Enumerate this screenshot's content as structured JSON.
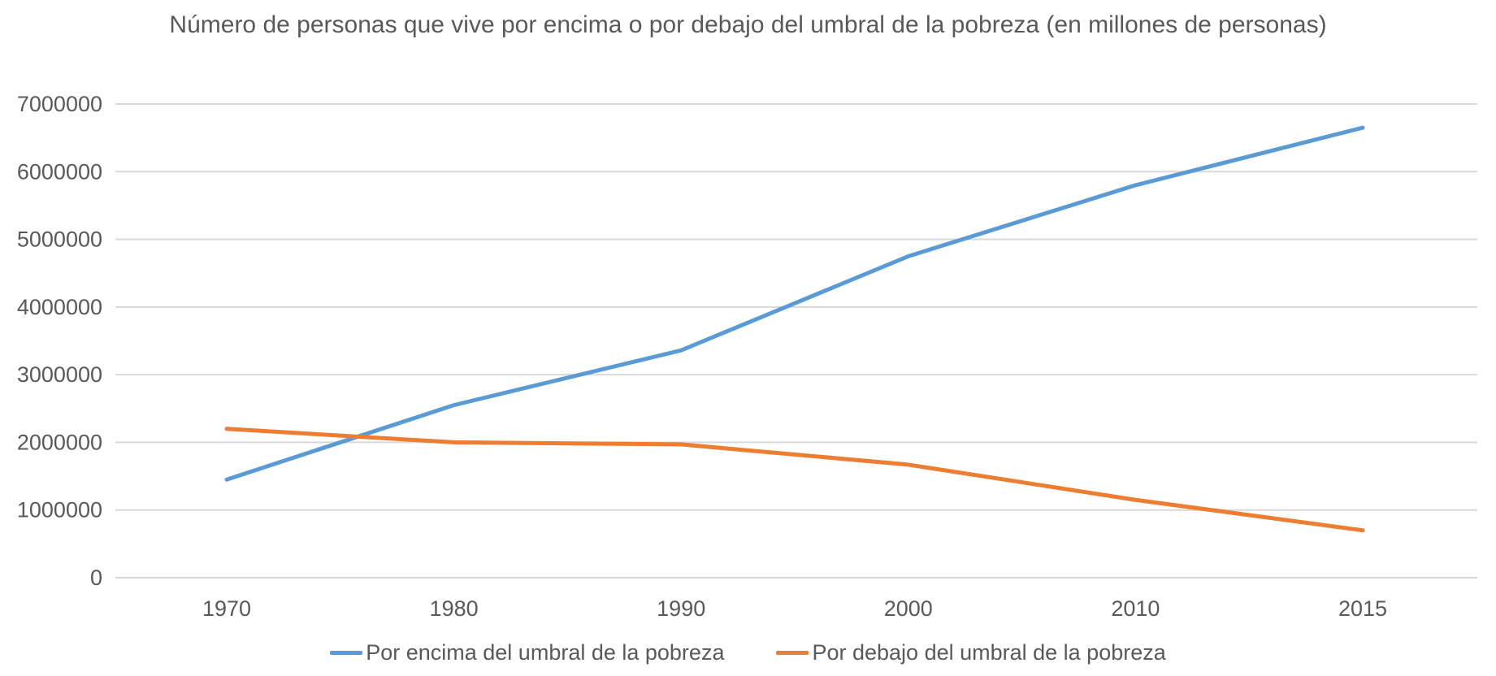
{
  "title": "Número de personas que vive por encima o por debajo del umbral de la pobreza (en millones de personas)",
  "chart_data": {
    "type": "line",
    "x": [
      "1970",
      "1980",
      "1990",
      "2000",
      "2010",
      "2015"
    ],
    "series": [
      {
        "name": "Por encima del umbral de la pobreza",
        "slug": "por-encima",
        "color": "#5B9BD5",
        "values": [
          1450000,
          2550000,
          3360000,
          4750000,
          5800000,
          6650000
        ]
      },
      {
        "name": "Por debajo del umbral de la pobreza",
        "slug": "por-debajo",
        "color": "#ED7D31",
        "values": [
          2200000,
          2000000,
          1970000,
          1670000,
          1150000,
          700000
        ]
      }
    ],
    "ylim": [
      0,
      7000000
    ],
    "ytick_interval": 1000000,
    "ytick_labels": [
      "0",
      "1000000",
      "2000000",
      "3000000",
      "4000000",
      "5000000",
      "6000000",
      "7000000"
    ],
    "xlabel": "",
    "ylabel": "",
    "grid": true,
    "legend_position": "bottom",
    "colors": {
      "text": "#595959",
      "gridline": "#D9D9D9",
      "background": "#FFFFFF"
    }
  }
}
